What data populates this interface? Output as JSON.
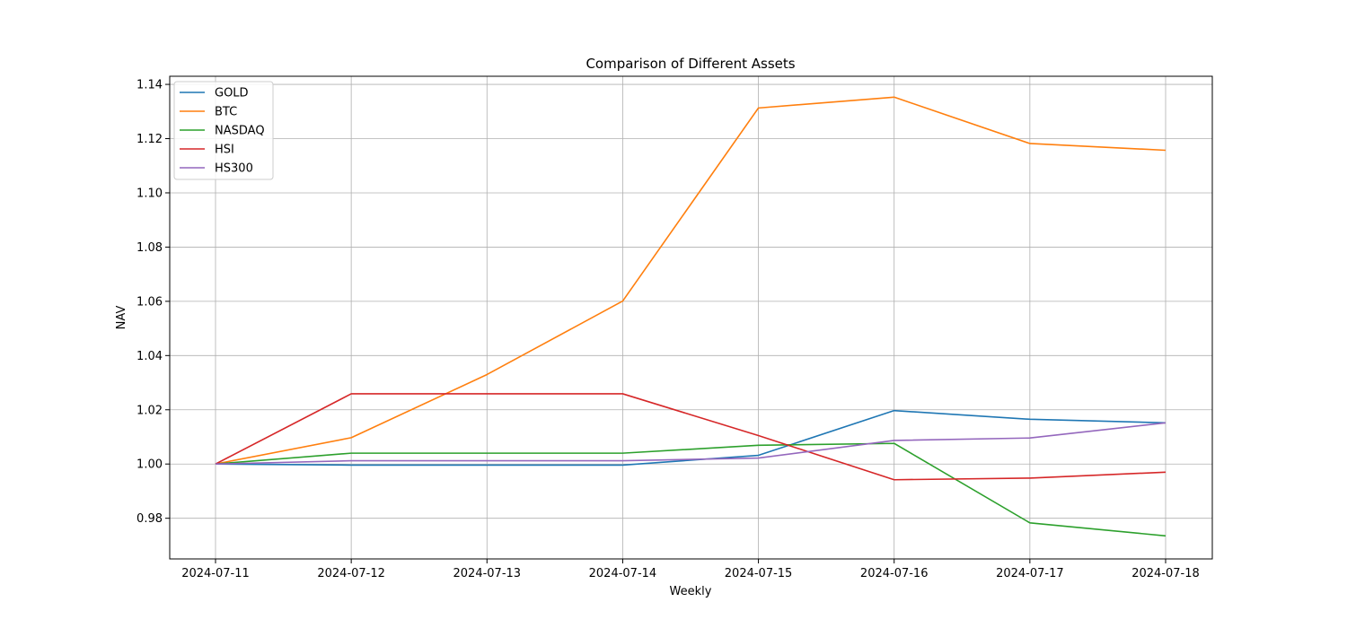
{
  "chart_data": {
    "type": "line",
    "title": "Comparison of Different Assets",
    "xlabel": "Weekly",
    "ylabel": "NAV",
    "categories": [
      "2024-07-11",
      "2024-07-12",
      "2024-07-13",
      "2024-07-14",
      "2024-07-15",
      "2024-07-16",
      "2024-07-17",
      "2024-07-18"
    ],
    "ylim": [
      0.965,
      1.143
    ],
    "yticks": [
      0.98,
      1.0,
      1.02,
      1.04,
      1.06,
      1.08,
      1.1,
      1.12,
      1.14
    ],
    "ytick_labels": [
      "0.98",
      "1.00",
      "1.02",
      "1.04",
      "1.06",
      "1.08",
      "1.10",
      "1.12",
      "1.14"
    ],
    "grid": true,
    "legend_position": "upper-left",
    "series": [
      {
        "name": "GOLD",
        "color": "#1f77b4",
        "values": [
          1.0,
          0.9996,
          0.9996,
          0.9996,
          1.0032,
          1.0197,
          1.0165,
          1.0152
        ]
      },
      {
        "name": "BTC",
        "color": "#ff7f0e",
        "values": [
          1.0,
          1.0097,
          1.033,
          1.0601,
          1.1313,
          1.1353,
          1.1182,
          1.1157
        ]
      },
      {
        "name": "NASDAQ",
        "color": "#2ca02c",
        "values": [
          1.0,
          1.004,
          1.004,
          1.004,
          1.0069,
          1.0076,
          0.9783,
          0.9735
        ]
      },
      {
        "name": "HSI",
        "color": "#d62728",
        "values": [
          1.0,
          1.0259,
          1.0259,
          1.0259,
          1.0105,
          0.9942,
          0.9948,
          0.997
        ]
      },
      {
        "name": "HS300",
        "color": "#9467bd",
        "values": [
          1.0,
          1.0012,
          1.0012,
          1.0012,
          1.0022,
          1.0087,
          1.0096,
          1.0152
        ]
      }
    ]
  }
}
